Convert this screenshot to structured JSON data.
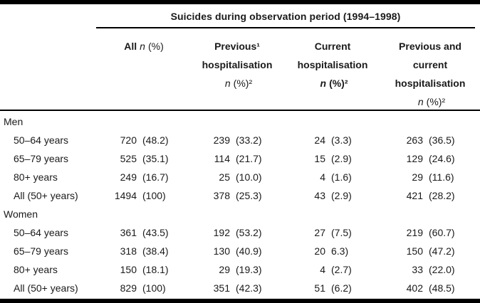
{
  "title": "Suicides during observation period (1994–1998)",
  "headers": {
    "all": {
      "bold": "All",
      "n": "n",
      "rest": "(%)"
    },
    "previous": {
      "lines": [
        "Previous¹",
        "hospitalisation"
      ],
      "n": "n",
      "rest": "(%)²"
    },
    "current": {
      "lines": [
        "Current",
        "hospitalisation"
      ],
      "n": "n",
      "rest": "(%)²"
    },
    "prev_current": {
      "lines": [
        "Previous and",
        "current",
        "hospitalisation"
      ],
      "n": "n",
      "rest": "(%)²"
    }
  },
  "groups": [
    {
      "label": "Men",
      "rows": [
        {
          "label": "50–64 years",
          "cells": [
            {
              "n": "720",
              "pct": "(48.2)"
            },
            {
              "n": "239",
              "pct": "(33.2)"
            },
            {
              "n": "24",
              "pct": "(3.3)"
            },
            {
              "n": "263",
              "pct": "(36.5)"
            }
          ]
        },
        {
          "label": "65–79 years",
          "cells": [
            {
              "n": "525",
              "pct": "(35.1)"
            },
            {
              "n": "114",
              "pct": "(21.7)"
            },
            {
              "n": "15",
              "pct": "(2.9)"
            },
            {
              "n": "129",
              "pct": "(24.6)"
            }
          ]
        },
        {
          "label": "80+ years",
          "cells": [
            {
              "n": "249",
              "pct": "(16.7)"
            },
            {
              "n": "25",
              "pct": "(10.0)"
            },
            {
              "n": "4",
              "pct": "(1.6)"
            },
            {
              "n": "29",
              "pct": "(11.6)"
            }
          ]
        },
        {
          "label": "All (50+ years)",
          "cells": [
            {
              "n": "1494",
              "pct": "(100)"
            },
            {
              "n": "378",
              "pct": "(25.3)"
            },
            {
              "n": "43",
              "pct": "(2.9)"
            },
            {
              "n": "421",
              "pct": "(28.2)"
            }
          ]
        }
      ]
    },
    {
      "label": "Women",
      "rows": [
        {
          "label": "50–64 years",
          "cells": [
            {
              "n": "361",
              "pct": "(43.5)"
            },
            {
              "n": "192",
              "pct": "(53.2)"
            },
            {
              "n": "27",
              "pct": "(7.5)"
            },
            {
              "n": "219",
              "pct": "(60.7)"
            }
          ]
        },
        {
          "label": "65–79 years",
          "cells": [
            {
              "n": "318",
              "pct": "(38.4)"
            },
            {
              "n": "130",
              "pct": "(40.9)"
            },
            {
              "n": "20",
              "pct": "6.3)"
            },
            {
              "n": "150",
              "pct": "(47.2)"
            }
          ]
        },
        {
          "label": "80+ years",
          "cells": [
            {
              "n": "150",
              "pct": "(18.1)"
            },
            {
              "n": "29",
              "pct": "(19.3)"
            },
            {
              "n": "4",
              "pct": "(2.7)"
            },
            {
              "n": "33",
              "pct": "(22.0)"
            }
          ]
        },
        {
          "label": "All (50+ years)",
          "cells": [
            {
              "n": "829",
              "pct": "(100)"
            },
            {
              "n": "351",
              "pct": "(42.3)"
            },
            {
              "n": "51",
              "pct": "(6.2)"
            },
            {
              "n": "402",
              "pct": "(48.5)"
            }
          ]
        }
      ]
    }
  ]
}
